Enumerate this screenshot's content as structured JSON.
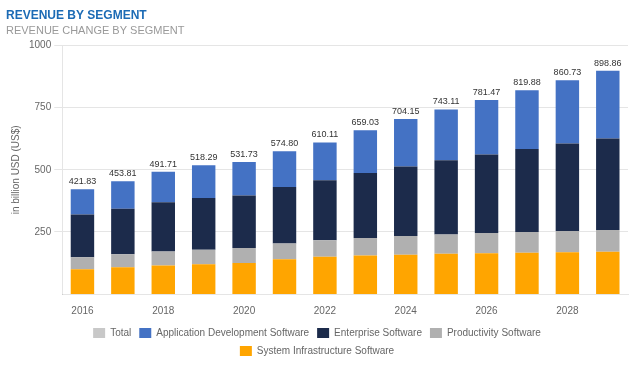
{
  "chart_data": {
    "type": "bar",
    "title": "REVENUE BY SEGMENT",
    "subtitle": "REVENUE CHANGE BY SEGMENT",
    "y_label": "in billion USD (US$)",
    "categories": [
      "2016",
      null,
      "2018",
      null,
      "2020",
      null,
      "2022",
      null,
      "2024",
      null,
      "2026",
      null,
      "2028",
      null
    ],
    "series": [
      {
        "name": "System Infrastructure Software",
        "color": "#FFA500",
        "values": [
          100,
          108,
          115,
          120,
          125,
          140,
          150,
          155,
          158,
          162,
          164,
          166,
          168,
          170
        ]
      },
      {
        "name": "Productivity Software",
        "color": "#B0B0B0",
        "values": [
          48,
          52,
          56,
          58,
          60,
          63,
          66,
          70,
          75,
          78,
          82,
          84,
          86,
          88
        ]
      },
      {
        "name": "Enterprise Software",
        "color": "#1C2B4B",
        "values": [
          172,
          183,
          198,
          208,
          212,
          228,
          242,
          262,
          280,
          298,
          316,
          334,
          352,
          368
        ]
      },
      {
        "name": "Application Development Software",
        "color": "#4472C4",
        "values": [
          101.83,
          110.81,
          122.71,
          132.29,
          134.73,
          143.8,
          152.11,
          172.03,
          191.15,
          205.11,
          219.47,
          235.88,
          254.73,
          272.86
        ]
      },
      {
        "name": "Total",
        "color": "#C8C8C8",
        "type": "line",
        "line_style": "none",
        "marker": "none",
        "data_labels": true,
        "values": [
          421.83,
          453.81,
          491.71,
          518.29,
          531.73,
          574.8,
          610.11,
          659.03,
          704.15,
          743.11,
          781.47,
          819.88,
          860.73,
          898.86
        ],
        "value_labels": [
          "421.83",
          "453.81",
          "491.71",
          "518.29",
          "531.73",
          "574.80",
          "610.11",
          "659.03",
          "704.15",
          "743.11",
          "781.47",
          "819.88",
          "860.73",
          "898.86"
        ]
      }
    ],
    "stacked": true,
    "ylim": [
      0,
      1000
    ],
    "yticks": [
      250,
      500,
      750,
      1000
    ],
    "grid": true,
    "legend": "bottom"
  }
}
